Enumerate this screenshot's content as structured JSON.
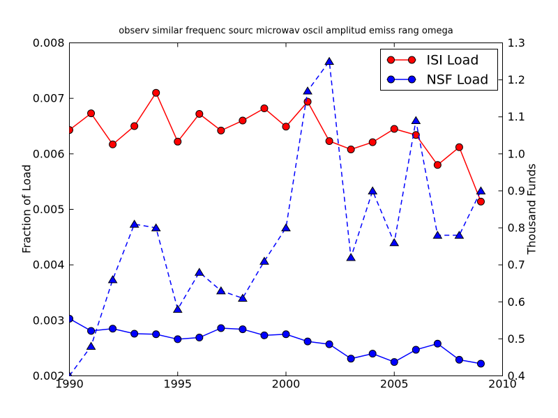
{
  "chart_data": {
    "type": "line",
    "title": "observ similar frequenc sourc microwav oscil amplitud emiss rang omega",
    "grid": false,
    "x": [
      1990,
      1991,
      1992,
      1993,
      1994,
      1995,
      1996,
      1997,
      1998,
      1999,
      2000,
      2001,
      2002,
      2003,
      2004,
      2005,
      2006,
      2007,
      2008,
      2009
    ],
    "x_axis": {
      "min": 1990,
      "max": 2010,
      "ticks": [
        1990,
        1995,
        2000,
        2005,
        2010
      ],
      "tick_labels": [
        "1990",
        "1995",
        "2000",
        "2005",
        "2010"
      ]
    },
    "left_axis": {
      "label": "Fraction of Load",
      "min": 0.002,
      "max": 0.008,
      "ticks": [
        0.002,
        0.003,
        0.004,
        0.005,
        0.006,
        0.007,
        0.008
      ],
      "tick_labels": [
        "0.002",
        "0.003",
        "0.004",
        "0.005",
        "0.006",
        "0.007",
        "0.008"
      ]
    },
    "right_axis": {
      "label": "Thousand Funds",
      "min": 0.4,
      "max": 1.3,
      "ticks": [
        0.4,
        0.5,
        0.6,
        0.7,
        0.8,
        0.9,
        1.0,
        1.1,
        1.2,
        1.3
      ],
      "tick_labels": [
        "0.4",
        "0.5",
        "0.6",
        "0.7",
        "0.8",
        "0.9",
        "1.0",
        "1.1",
        "1.2",
        "1.3"
      ]
    },
    "legend": {
      "position": "upper-right",
      "entries": [
        {
          "label": "ISI Load",
          "color": "#ff0000"
        },
        {
          "label": "NSF Load",
          "color": "#0000ff"
        }
      ]
    },
    "series": [
      {
        "name": "ISI Load",
        "axis": "left",
        "color": "#ff0000",
        "line_style": "solid",
        "marker": "circle",
        "in_legend": true,
        "values": [
          0.00643,
          0.00673,
          0.00617,
          0.0065,
          0.0071,
          0.00622,
          0.00672,
          0.00642,
          0.0066,
          0.00682,
          0.00649,
          0.00694,
          0.00623,
          0.00608,
          0.00621,
          0.00645,
          0.00634,
          0.0058,
          0.00612,
          0.00514
        ]
      },
      {
        "name": "NSF Load",
        "axis": "left",
        "color": "#0000ff",
        "line_style": "solid",
        "marker": "circle",
        "in_legend": true,
        "values": [
          0.00303,
          0.00281,
          0.00285,
          0.00276,
          0.00275,
          0.00266,
          0.00269,
          0.00286,
          0.00284,
          0.00273,
          0.00275,
          0.00262,
          0.00257,
          0.00231,
          0.0024,
          0.00225,
          0.00247,
          0.00258,
          0.00229,
          0.00222
        ]
      },
      {
        "name": "Thousand Funds",
        "axis": "right",
        "color": "#0000ff",
        "line_style": "dashed",
        "marker": "triangle-up",
        "in_legend": false,
        "values": [
          0.4,
          0.48,
          0.66,
          0.81,
          0.8,
          0.58,
          0.68,
          0.63,
          0.61,
          0.71,
          0.8,
          1.17,
          1.25,
          0.72,
          0.9,
          0.76,
          1.09,
          0.78,
          0.78,
          0.9
        ]
      }
    ],
    "colors": {
      "red": "#ff0000",
      "blue": "#0000ff",
      "text": "#000000",
      "background": "#ffffff",
      "frame": "#000000"
    }
  }
}
